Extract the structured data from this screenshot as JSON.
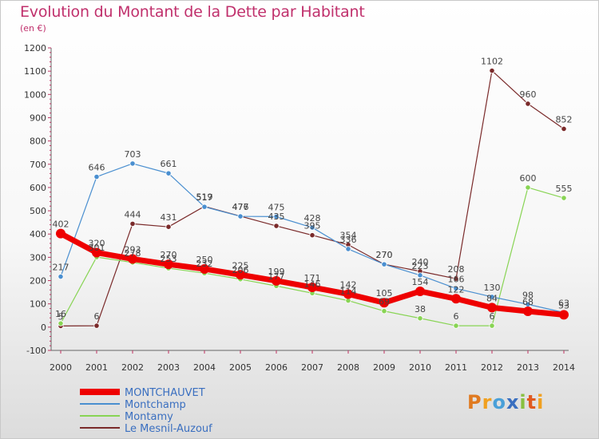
{
  "title": "Evolution du Montant de la Dette par Habitant",
  "unit_label": "(en €)",
  "logo_text": "Proxiti",
  "chart_data": {
    "type": "line",
    "title": "Evolution du Montant de la Dette par Habitant",
    "ylabel": "(en €)",
    "xlabel": "",
    "x": [
      2000,
      2001,
      2002,
      2003,
      2004,
      2005,
      2006,
      2007,
      2008,
      2009,
      2010,
      2011,
      2012,
      2013,
      2014
    ],
    "ylim": [
      -100,
      1200
    ],
    "yticks": [
      -100,
      0,
      100,
      200,
      300,
      400,
      500,
      600,
      700,
      800,
      900,
      1000,
      1100,
      1200
    ],
    "grid": false,
    "legend": "bottom-left",
    "series": [
      {
        "name": "MONTCHAUVET",
        "color": "#ee0000",
        "values": [
          402,
          320,
          293,
          270,
          250,
          225,
          199,
          171,
          142,
          105,
          154,
          122,
          84,
          68,
          53
        ]
      },
      {
        "name": "Montchamp",
        "color": "#4a8fd0",
        "values": [
          217,
          646,
          703,
          661,
          517,
          476,
          475,
          428,
          336,
          270,
          223,
          166,
          130,
          98,
          63
        ]
      },
      {
        "name": "Montamy",
        "color": "#88d454",
        "values": [
          16,
          301,
          278,
          253,
          232,
          206,
          177,
          146,
          114,
          69,
          38,
          6,
          6,
          600,
          555
        ]
      },
      {
        "name": "Le Mesnil-Auzouf",
        "color": "#7a2a2a",
        "values": [
          5,
          6,
          444,
          431,
          519,
          477,
          435,
          395,
          354,
          270,
          240,
          208,
          1102,
          960,
          852
        ]
      }
    ]
  }
}
